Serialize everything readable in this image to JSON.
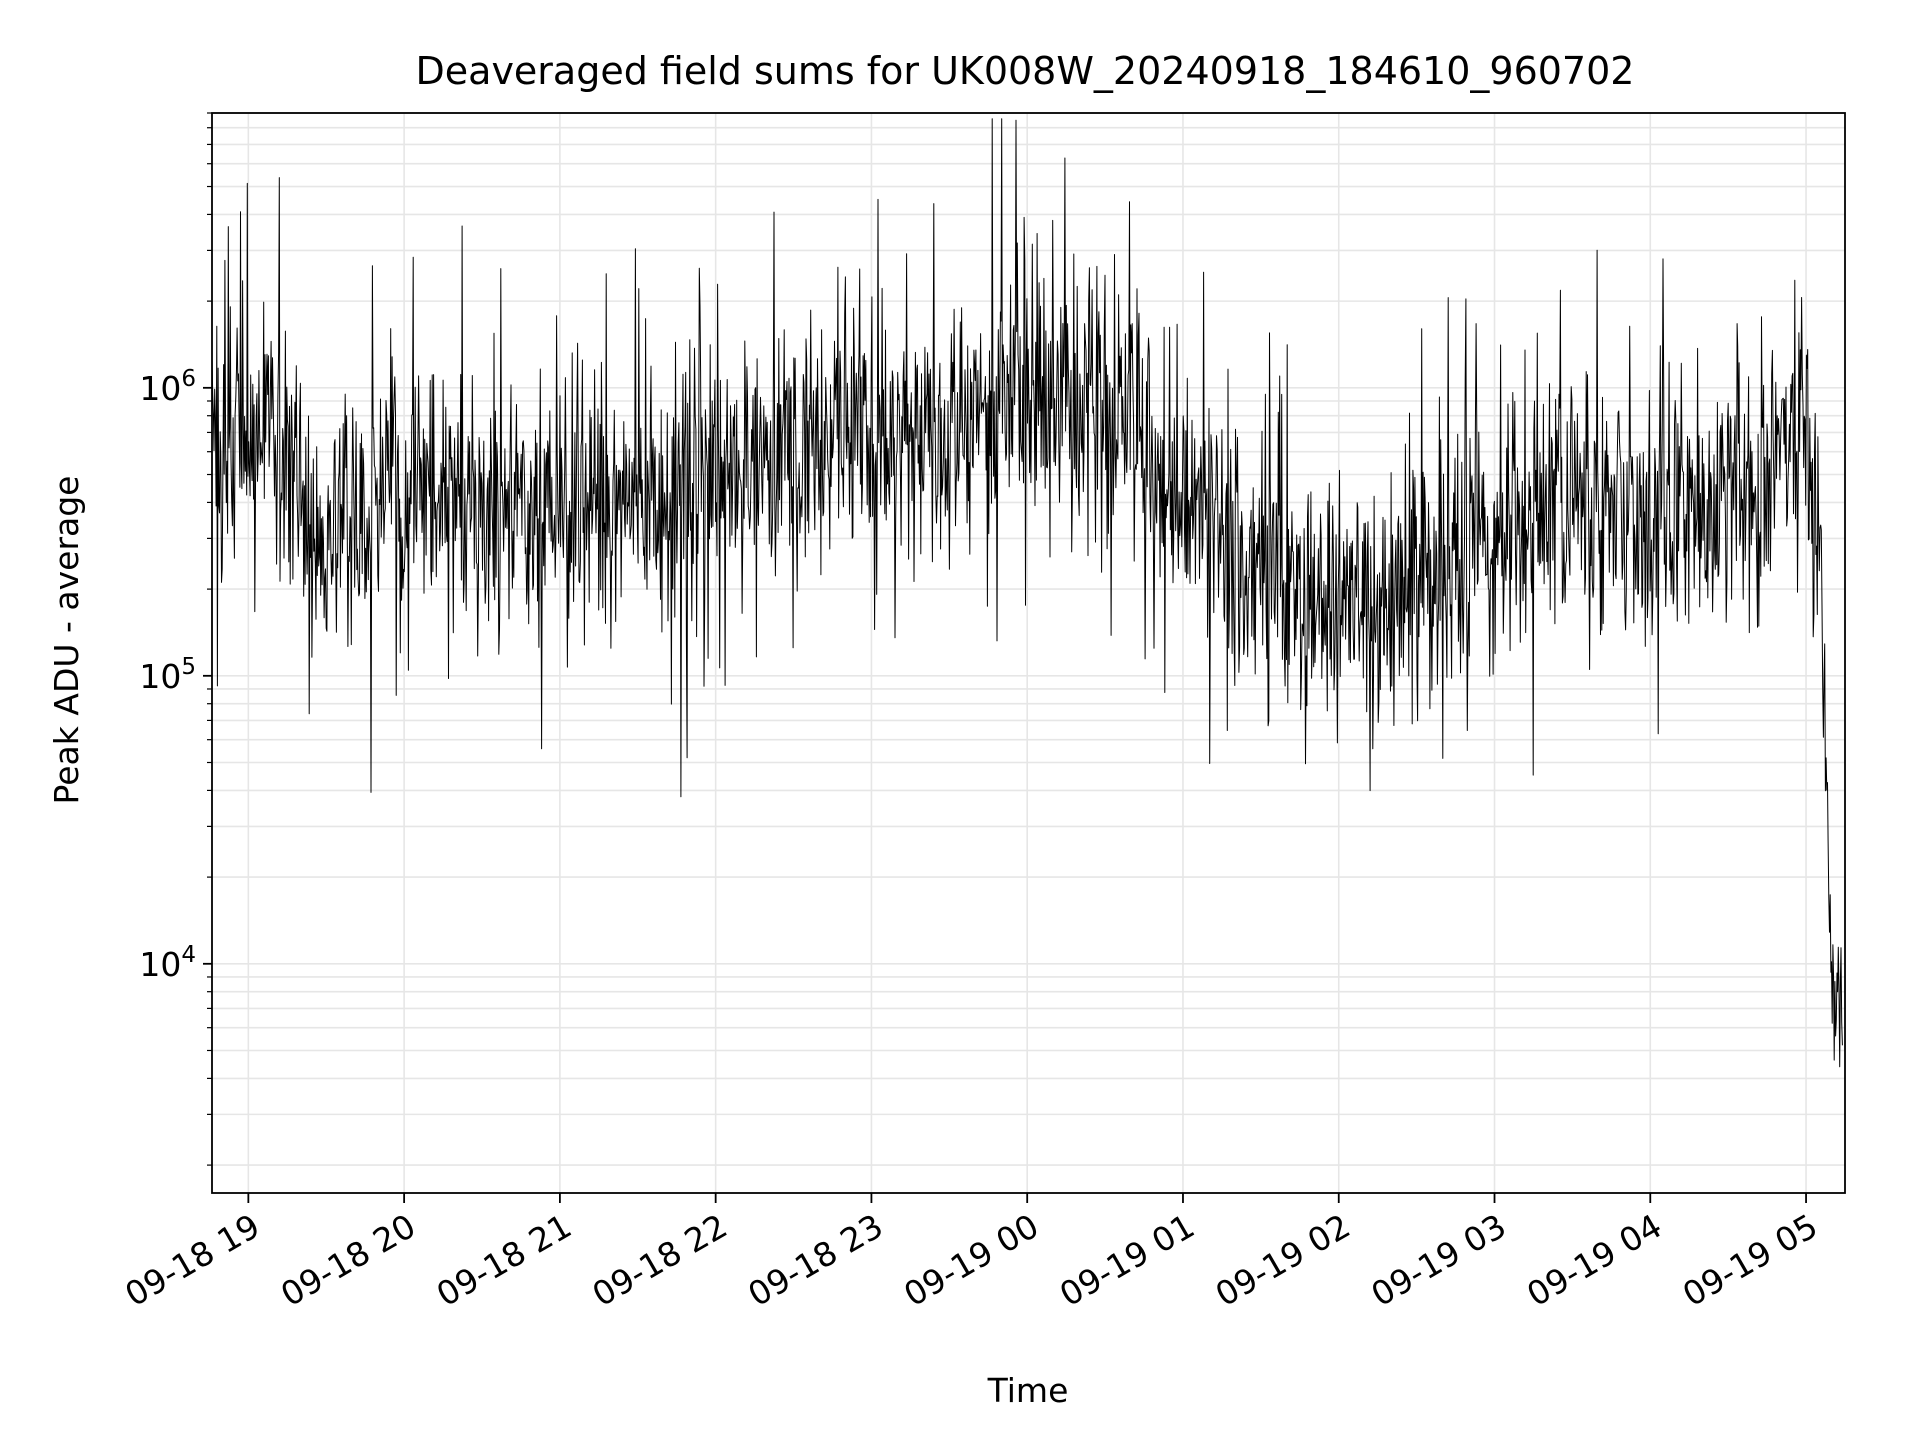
{
  "chart_data": {
    "type": "line",
    "title": "Deaveraged field sums for UK008W_20240918_184610_960702",
    "xlabel": "Time",
    "ylabel": "Peak ADU - average",
    "yscale": "log",
    "ylim": [
      1600,
      9000000
    ],
    "xlim": [
      "2024-09-18 18:46",
      "2024-09-19 05:15"
    ],
    "grid": true,
    "line_color": "#000000",
    "grid_color": "#e6e6e6",
    "x_ticks": [
      {
        "t": "2024-09-18 19:00",
        "label": "09-18 19"
      },
      {
        "t": "2024-09-18 20:00",
        "label": "09-18 20"
      },
      {
        "t": "2024-09-18 21:00",
        "label": "09-18 21"
      },
      {
        "t": "2024-09-18 22:00",
        "label": "09-18 22"
      },
      {
        "t": "2024-09-18 23:00",
        "label": "09-18 23"
      },
      {
        "t": "2024-09-19 00:00",
        "label": "09-19 00"
      },
      {
        "t": "2024-09-19 01:00",
        "label": "09-19 01"
      },
      {
        "t": "2024-09-19 02:00",
        "label": "09-19 02"
      },
      {
        "t": "2024-09-19 03:00",
        "label": "09-19 03"
      },
      {
        "t": "2024-09-19 04:00",
        "label": "09-19 04"
      },
      {
        "t": "2024-09-19 05:00",
        "label": "09-19 05"
      }
    ],
    "y_ticks": [
      {
        "value": 10000,
        "base": "10",
        "exp": "4"
      },
      {
        "value": 100000,
        "base": "10",
        "exp": "5"
      },
      {
        "value": 1000000,
        "base": "10",
        "exp": "6"
      }
    ],
    "series": [
      {
        "x": [
          "2024-09-18 18:46",
          "2024-09-18 18:55",
          "2024-09-18 19:10",
          "2024-09-18 19:25",
          "2024-09-18 19:40",
          "2024-09-18 20:00",
          "2024-09-18 20:20",
          "2024-09-18 20:40",
          "2024-09-18 21:00",
          "2024-09-18 21:20",
          "2024-09-18 21:40",
          "2024-09-18 22:00",
          "2024-09-18 22:20",
          "2024-09-18 22:40",
          "2024-09-18 22:55",
          "2024-09-18 23:15",
          "2024-09-18 23:40",
          "2024-09-19 00:00",
          "2024-09-19 00:20",
          "2024-09-19 00:37",
          "2024-09-19 00:50",
          "2024-09-19 01:05",
          "2024-09-19 01:20",
          "2024-09-19 01:40",
          "2024-09-19 02:00",
          "2024-09-19 02:20",
          "2024-09-19 02:40",
          "2024-09-19 03:00",
          "2024-09-19 03:20",
          "2024-09-19 03:40",
          "2024-09-19 04:00",
          "2024-09-19 04:20",
          "2024-09-19 04:40",
          "2024-09-19 05:00",
          "2024-09-19 05:03",
          "2024-09-19 05:06",
          "2024-09-19 05:08",
          "2024-09-19 05:10",
          "2024-09-19 05:12",
          "2024-09-19 05:14"
        ],
        "y": [
          500000,
          700000,
          800000,
          330000,
          380000,
          500000,
          430000,
          380000,
          370000,
          400000,
          420000,
          500000,
          560000,
          680000,
          700000,
          600000,
          850000,
          1050000,
          850000,
          1000000,
          500000,
          380000,
          270000,
          200000,
          180000,
          190000,
          250000,
          300000,
          360000,
          380000,
          380000,
          400000,
          430000,
          850000,
          600000,
          200000,
          35000,
          10000,
          7000,
          8000
        ]
      }
    ]
  }
}
